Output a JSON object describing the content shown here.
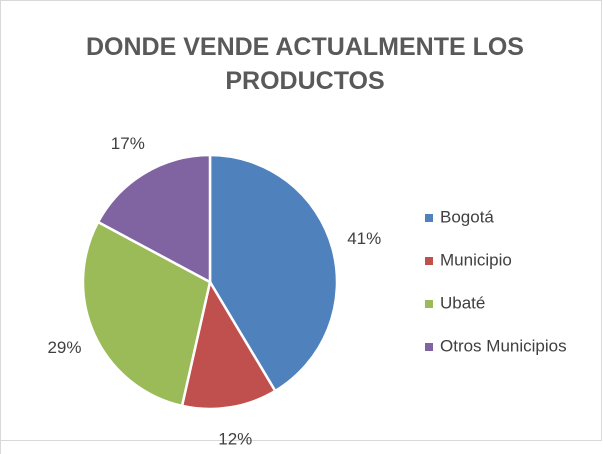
{
  "chart_data": {
    "type": "pie",
    "title": "DONDE VENDE ACTUALMENTE LOS PRODUCTOS",
    "categories": [
      "Bogotá",
      "Municipio",
      "Ubaté",
      "Otros Municipios"
    ],
    "values": [
      41,
      12,
      29,
      17
    ],
    "value_labels": [
      "41%",
      "12%",
      "29%",
      "17%"
    ],
    "colors": [
      "#4f81bd",
      "#c0504d",
      "#9bbb59",
      "#8064a2"
    ],
    "legend": "right"
  }
}
